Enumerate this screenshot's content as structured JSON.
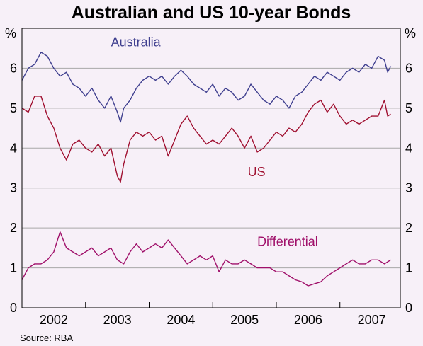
{
  "chart_data": {
    "type": "line",
    "title": "Australian and US 10-year Bonds",
    "y_unit_left": "%",
    "y_unit_right": "%",
    "ylim": [
      0,
      7
    ],
    "yticks": [
      "0",
      "1",
      "2",
      "3",
      "4",
      "5",
      "6"
    ],
    "xlim": [
      2001.5,
      2007.45
    ],
    "x_tick_labels": [
      "2002",
      "2003",
      "2004",
      "2005",
      "2006",
      "2007"
    ],
    "x_tick_positions": [
      2002,
      2003,
      2004,
      2005,
      2006,
      2007
    ],
    "grid": true,
    "source": "Source: RBA",
    "series": [
      {
        "name": "Australia",
        "color": "#3f3f8f",
        "x": [
          2001.5,
          2001.6,
          2001.7,
          2001.8,
          2001.9,
          2002.0,
          2002.1,
          2002.2,
          2002.3,
          2002.4,
          2002.5,
          2002.6,
          2002.7,
          2002.8,
          2002.9,
          2003.0,
          2003.05,
          2003.1,
          2003.2,
          2003.3,
          2003.4,
          2003.5,
          2003.6,
          2003.7,
          2003.8,
          2003.9,
          2004.0,
          2004.1,
          2004.2,
          2004.3,
          2004.4,
          2004.5,
          2004.6,
          2004.7,
          2004.8,
          2004.9,
          2005.0,
          2005.1,
          2005.2,
          2005.3,
          2005.4,
          2005.5,
          2005.6,
          2005.7,
          2005.8,
          2005.9,
          2006.0,
          2006.1,
          2006.2,
          2006.3,
          2006.4,
          2006.5,
          2006.6,
          2006.7,
          2006.8,
          2006.9,
          2007.0,
          2007.1,
          2007.2,
          2007.25,
          2007.3
        ],
        "values": [
          5.7,
          6.0,
          6.1,
          6.4,
          6.3,
          6.0,
          5.8,
          5.9,
          5.6,
          5.5,
          5.3,
          5.5,
          5.2,
          5.0,
          5.3,
          4.9,
          4.65,
          5.0,
          5.2,
          5.5,
          5.7,
          5.8,
          5.7,
          5.8,
          5.6,
          5.8,
          5.95,
          5.8,
          5.6,
          5.5,
          5.4,
          5.6,
          5.3,
          5.5,
          5.4,
          5.2,
          5.3,
          5.6,
          5.4,
          5.2,
          5.1,
          5.3,
          5.2,
          5.0,
          5.3,
          5.4,
          5.6,
          5.8,
          5.7,
          5.9,
          5.8,
          5.7,
          5.9,
          6.0,
          5.9,
          6.1,
          6.0,
          6.3,
          6.2,
          5.9,
          6.05
        ]
      },
      {
        "name": "US",
        "color": "#a01030",
        "x": [
          2001.5,
          2001.6,
          2001.7,
          2001.8,
          2001.9,
          2002.0,
          2002.1,
          2002.2,
          2002.3,
          2002.4,
          2002.5,
          2002.6,
          2002.7,
          2002.8,
          2002.9,
          2003.0,
          2003.05,
          2003.1,
          2003.2,
          2003.3,
          2003.4,
          2003.5,
          2003.6,
          2003.7,
          2003.8,
          2003.9,
          2004.0,
          2004.1,
          2004.2,
          2004.3,
          2004.4,
          2004.5,
          2004.6,
          2004.7,
          2004.8,
          2004.9,
          2005.0,
          2005.1,
          2005.2,
          2005.3,
          2005.4,
          2005.5,
          2005.6,
          2005.7,
          2005.8,
          2005.9,
          2006.0,
          2006.1,
          2006.2,
          2006.3,
          2006.4,
          2006.5,
          2006.6,
          2006.7,
          2006.8,
          2006.9,
          2007.0,
          2007.1,
          2007.2,
          2007.25,
          2007.3
        ],
        "values": [
          5.0,
          4.9,
          5.3,
          5.3,
          4.8,
          4.5,
          4.0,
          3.7,
          4.1,
          4.2,
          4.0,
          3.9,
          4.1,
          3.8,
          4.0,
          3.3,
          3.15,
          3.6,
          4.2,
          4.4,
          4.3,
          4.4,
          4.2,
          4.3,
          3.8,
          4.2,
          4.6,
          4.8,
          4.5,
          4.3,
          4.1,
          4.2,
          4.1,
          4.3,
          4.5,
          4.3,
          4.0,
          4.3,
          3.9,
          4.0,
          4.2,
          4.4,
          4.3,
          4.5,
          4.4,
          4.6,
          4.9,
          5.1,
          5.2,
          4.9,
          5.1,
          4.8,
          4.6,
          4.7,
          4.6,
          4.7,
          4.8,
          4.8,
          5.2,
          4.8,
          4.85
        ]
      },
      {
        "name": "Differential",
        "color": "#a0106a",
        "x": [
          2001.5,
          2001.6,
          2001.7,
          2001.8,
          2001.9,
          2002.0,
          2002.1,
          2002.2,
          2002.3,
          2002.4,
          2002.5,
          2002.6,
          2002.7,
          2002.8,
          2002.9,
          2003.0,
          2003.1,
          2003.2,
          2003.3,
          2003.4,
          2003.5,
          2003.6,
          2003.7,
          2003.8,
          2003.9,
          2004.0,
          2004.1,
          2004.2,
          2004.3,
          2004.4,
          2004.5,
          2004.6,
          2004.7,
          2004.8,
          2004.9,
          2005.0,
          2005.1,
          2005.2,
          2005.3,
          2005.4,
          2005.5,
          2005.6,
          2005.7,
          2005.8,
          2005.9,
          2006.0,
          2006.1,
          2006.2,
          2006.3,
          2006.4,
          2006.5,
          2006.6,
          2006.7,
          2006.8,
          2006.9,
          2007.0,
          2007.1,
          2007.2,
          2007.3
        ],
        "values": [
          0.7,
          1.0,
          1.1,
          1.1,
          1.2,
          1.4,
          1.9,
          1.5,
          1.4,
          1.3,
          1.4,
          1.5,
          1.3,
          1.4,
          1.5,
          1.2,
          1.1,
          1.4,
          1.6,
          1.4,
          1.5,
          1.6,
          1.5,
          1.7,
          1.5,
          1.3,
          1.1,
          1.2,
          1.3,
          1.2,
          1.3,
          0.9,
          1.2,
          1.1,
          1.1,
          1.2,
          1.1,
          1.0,
          1.0,
          1.0,
          0.9,
          0.9,
          0.8,
          0.7,
          0.65,
          0.55,
          0.6,
          0.65,
          0.8,
          0.9,
          1.0,
          1.1,
          1.2,
          1.1,
          1.1,
          1.2,
          1.2,
          1.1,
          1.2
        ]
      }
    ]
  }
}
